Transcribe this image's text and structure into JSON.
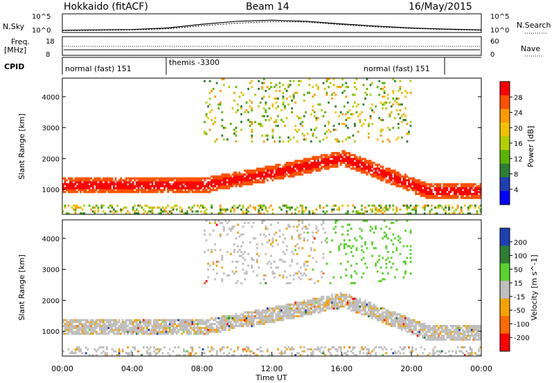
{
  "chart_data": [
    {
      "type": "line",
      "panel": "noise",
      "title": "Hokkaido (fitACF)",
      "subtitle": "Beam 14",
      "date": "16/May/2015",
      "left_label": "N.Sky",
      "right_label": "N.Search",
      "left_ticks": [
        "10^5",
        "10^0"
      ],
      "right_ticks": [
        "10^5",
        "10^0"
      ],
      "x": [
        0,
        2,
        4,
        6,
        8,
        10,
        12,
        14,
        16,
        18,
        20,
        22,
        24
      ],
      "series": [
        {
          "values": [
            0.6,
            0.7,
            0.8,
            1.2,
            2.2,
            3.0,
            3.3,
            3.0,
            2.3,
            1.7,
            1.2,
            0.9,
            0.7
          ]
        },
        {
          "values": [
            0.5,
            0.6,
            0.7,
            1.0,
            1.8,
            2.5,
            2.9,
            2.8,
            2.1,
            1.5,
            1.1,
            0.8,
            0.6
          ]
        }
      ],
      "ylim": [
        0,
        5
      ]
    },
    {
      "type": "line",
      "panel": "frequency",
      "left_label": "Freq.",
      "left_unit": "[MHz]",
      "right_label": "Nave",
      "left_ticks": [
        "18",
        "8"
      ],
      "right_ticks": [
        "60",
        "0"
      ],
      "series": [
        {
          "values": [
            10.5,
            10.5
          ]
        },
        {
          "values": [
            11.5,
            11.5
          ]
        }
      ],
      "ylim": [
        8,
        18
      ]
    },
    {
      "type": "table",
      "panel": "cpid",
      "label": "CPID",
      "segments": [
        {
          "start": 0,
          "end": 6,
          "label": "normal (fast) 151"
        },
        {
          "start": 6,
          "end": 22,
          "label": "themis -3300"
        },
        {
          "start": 22,
          "end": 24,
          "label": "normal (fast) 151"
        }
      ]
    },
    {
      "type": "heatmap",
      "panel": "power",
      "ylabel": "Slant Range [km]",
      "colorbar_label": "Power [dB]",
      "colorbar_ticks": [
        "28",
        "24",
        "20",
        "16",
        "12",
        "8",
        "4"
      ],
      "colorbar_colors": [
        "#ff0000",
        "#ff5000",
        "#ff9a00",
        "#f2c200",
        "#b2d000",
        "#5bb400",
        "#2e7d32",
        "#1f3fb4",
        "#0000ff"
      ],
      "yticks": [
        1000,
        2000,
        3000,
        4000
      ],
      "ylim": [
        200,
        4600
      ],
      "xlim": [
        0,
        24
      ],
      "xtick_labels": [
        "00:00",
        "04:00",
        "08:00",
        "12:00",
        "16:00",
        "20:00",
        "00:00"
      ]
    },
    {
      "type": "heatmap",
      "panel": "velocity",
      "ylabel": "Slant Range [km]",
      "xlabel": "Time UT",
      "colorbar_label": "Velocity [m s^-1]",
      "colorbar_ticks": [
        "200",
        "100",
        "50",
        "15",
        "-15",
        "-50",
        "-100",
        "-200"
      ],
      "colorbar_colors": [
        "#1f3fb4",
        "#2e7d32",
        "#5bd22e",
        "#bfbfbf",
        "#f4a300",
        "#ff6a00",
        "#ff0000"
      ],
      "yticks": [
        1000,
        2000,
        3000,
        4000
      ],
      "ylim": [
        200,
        4600
      ],
      "xlim": [
        0,
        24
      ],
      "xtick_labels": [
        "00:00",
        "04:00",
        "08:00",
        "12:00",
        "16:00",
        "20:00",
        "00:00"
      ]
    }
  ]
}
